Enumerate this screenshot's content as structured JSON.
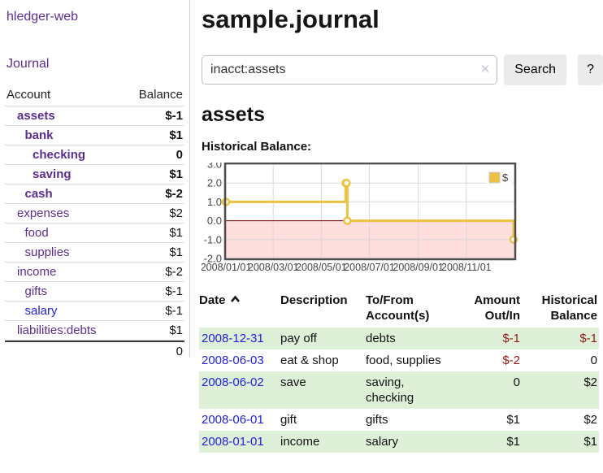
{
  "app": {
    "brand": "hledger-web",
    "nav": {
      "journal": "Journal"
    }
  },
  "sidebar": {
    "header": {
      "account": "Account",
      "balance": "Balance"
    },
    "accounts": [
      {
        "name": "assets",
        "balance": "$-1",
        "depth": 0,
        "in_account": true,
        "balance_tone": "negative",
        "link_tone": "purple"
      },
      {
        "name": "bank",
        "balance": "$1",
        "depth": 1,
        "in_account": true,
        "balance_tone": "normal",
        "link_tone": "purple"
      },
      {
        "name": "checking",
        "balance": "0",
        "depth": 2,
        "in_account": true,
        "balance_tone": "normal",
        "link_tone": "purple"
      },
      {
        "name": "saving",
        "balance": "$1",
        "depth": 2,
        "in_account": true,
        "balance_tone": "normal",
        "link_tone": "purple"
      },
      {
        "name": "cash",
        "balance": "$-2",
        "depth": 1,
        "in_account": true,
        "balance_tone": "negative",
        "link_tone": "purple"
      },
      {
        "name": "expenses",
        "balance": "$2",
        "depth": 0,
        "in_account": false,
        "balance_tone": "normal",
        "link_tone": "purple"
      },
      {
        "name": "food",
        "balance": "$1",
        "depth": 1,
        "in_account": false,
        "balance_tone": "normal",
        "link_tone": "purple"
      },
      {
        "name": "supplies",
        "balance": "$1",
        "depth": 1,
        "in_account": false,
        "balance_tone": "normal",
        "link_tone": "purple"
      },
      {
        "name": "income",
        "balance": "$-2",
        "depth": 0,
        "in_account": false,
        "balance_tone": "negative-dim",
        "link_tone": "purple"
      },
      {
        "name": "gifts",
        "balance": "$-1",
        "depth": 1,
        "in_account": false,
        "balance_tone": "negative-dim",
        "link_tone": "purple"
      },
      {
        "name": "salary",
        "balance": "$-1",
        "depth": 1,
        "in_account": false,
        "balance_tone": "negative-dim",
        "link_tone": "blue"
      },
      {
        "name": "liabilities:debts",
        "balance": "$1",
        "depth": 0,
        "in_account": false,
        "balance_tone": "normal",
        "link_tone": "purple"
      }
    ],
    "total": "0"
  },
  "main": {
    "title": "sample.journal",
    "search": {
      "value": "inacct:assets",
      "clear_icon": "✕",
      "search_label": "Search",
      "help_label": "?"
    },
    "account_title": "assets",
    "chart_heading": "Historical Balance:"
  },
  "chart_data": {
    "type": "line",
    "title": "Historical Balance:",
    "step": true,
    "x_domain": [
      "2008-01-01",
      "2009-01-01"
    ],
    "x_ticks": [
      {
        "date": "2008-01-01",
        "label": "2008/01/01"
      },
      {
        "date": "2008-03-01",
        "label": "2008/03/01"
      },
      {
        "date": "2008-05-01",
        "label": "2008/05/01"
      },
      {
        "date": "2008-07-01",
        "label": "2008/07/01"
      },
      {
        "date": "2008-09-01",
        "label": "2008/09/01"
      },
      {
        "date": "2008-11-01",
        "label": "2008/11/01"
      }
    ],
    "y_ticks": [
      3.0,
      2.0,
      1.0,
      0.0,
      -1.0,
      -2.0
    ],
    "ylim": [
      -2,
      3
    ],
    "series": [
      {
        "name": "$",
        "color": "#edc240",
        "points": [
          [
            "2008-01-01",
            1
          ],
          [
            "2008-06-01",
            2
          ],
          [
            "2008-06-02",
            2
          ],
          [
            "2008-06-03",
            0
          ],
          [
            "2008-12-31",
            -1
          ]
        ]
      }
    ],
    "legend": {
      "label": "$",
      "position": "top-right"
    },
    "grid": true,
    "border_color": "#4d4d4d",
    "grid_color": "#d8d8d8",
    "tick_color": "#454545",
    "zero_line_color": "#800000",
    "negative_region": {
      "from": 0,
      "to": -2,
      "color": "rgba(255,0,0,0.13)"
    }
  },
  "register": {
    "headers": {
      "date": "Date",
      "description": "Description",
      "tofrom": [
        "To/From",
        "Account(s)"
      ],
      "amount": [
        "Amount",
        "Out/In"
      ],
      "balance": [
        "Historical",
        "Balance"
      ]
    },
    "rows": [
      {
        "date": "2008-12-31",
        "description": "pay off",
        "accounts": "debts",
        "amount": "$-1",
        "balance": "$-1",
        "amount_negative": true,
        "balance_negative": true
      },
      {
        "date": "2008-06-03",
        "description": "eat & shop",
        "accounts": "food, supplies",
        "amount": "$-2",
        "balance": "0",
        "amount_negative": true,
        "balance_negative": false
      },
      {
        "date": "2008-06-02",
        "description": "save",
        "accounts": "saving, checking",
        "amount": "0",
        "balance": "$2",
        "amount_negative": false,
        "balance_negative": false
      },
      {
        "date": "2008-06-01",
        "description": "gift",
        "accounts": "gifts",
        "amount": "$1",
        "balance": "$2",
        "amount_negative": false,
        "balance_negative": false
      },
      {
        "date": "2008-01-01",
        "description": "income",
        "accounts": "salary",
        "amount": "$1",
        "balance": "$1",
        "amount_negative": false,
        "balance_negative": false
      }
    ]
  },
  "colors": {
    "link_purple": "#5c2d91",
    "link_blue": "#2222dd",
    "negative_strong": "#971717",
    "negative_dim": "#bf6f6f",
    "stripe_green": "#dff0d8",
    "series_gold": "#edc240"
  }
}
